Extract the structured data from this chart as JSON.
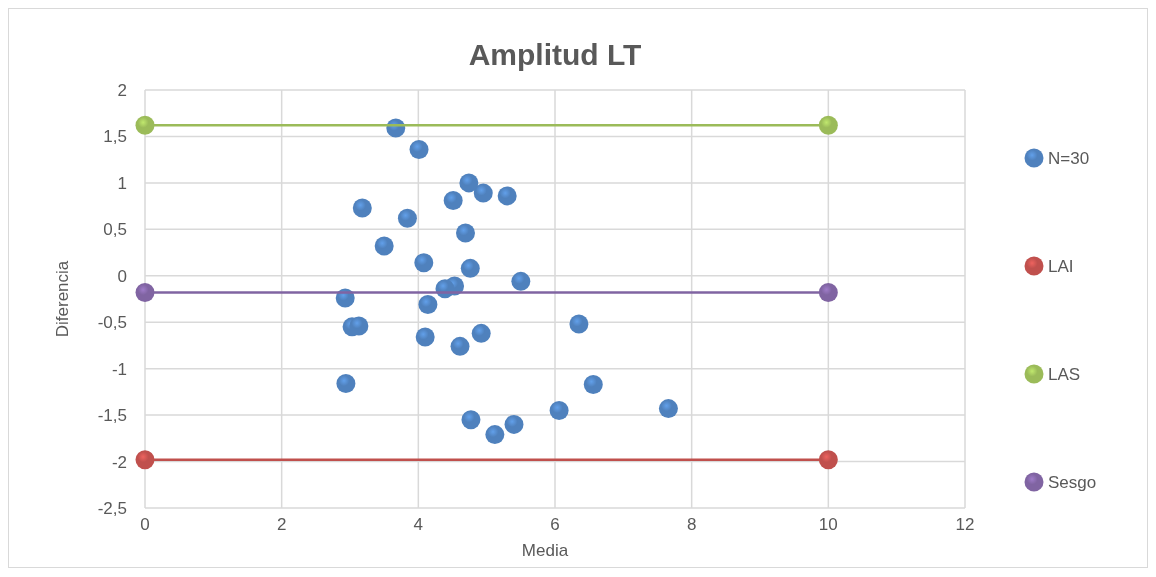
{
  "chart_data": {
    "type": "scatter",
    "title": "Amplitud LT",
    "xlabel": "Media",
    "ylabel": "Diferencia",
    "xlim": [
      0,
      12
    ],
    "xticks": [
      0,
      2,
      4,
      6,
      8,
      10,
      12
    ],
    "ylim": [
      -2.5,
      2
    ],
    "yticks": [
      {
        "value": -2.5,
        "label": "-2,5"
      },
      -2,
      {
        "value": -1.5,
        "label": "-1,5"
      },
      -1,
      {
        "value": -0.5,
        "label": "-0,5"
      },
      0,
      {
        "value": 0.5,
        "label": "0,5"
      },
      1,
      {
        "value": 1.5,
        "label": "1,5"
      },
      2
    ],
    "grid": true,
    "legend": "right",
    "marker": "circle",
    "series": [
      {
        "name": "N=30",
        "type": "scatter",
        "color": "#4f81bd",
        "x": [
          3.67,
          4.01,
          4.74,
          4.95,
          4.51,
          5.3,
          3.18,
          3.84,
          4.69,
          3.5,
          4.08,
          4.76,
          5.5,
          4.53,
          4.39,
          2.93,
          4.14,
          3.03,
          3.13,
          6.35,
          4.1,
          4.92,
          4.61,
          2.94,
          6.56,
          6.06,
          7.66,
          4.77,
          5.4,
          5.12
        ],
        "values": [
          1.59,
          1.36,
          1.0,
          0.89,
          0.81,
          0.86,
          0.73,
          0.62,
          0.46,
          0.32,
          0.14,
          0.08,
          -0.06,
          -0.11,
          -0.14,
          -0.24,
          -0.31,
          -0.55,
          -0.54,
          -0.52,
          -0.66,
          -0.62,
          -0.76,
          -1.16,
          -1.17,
          -1.45,
          -1.43,
          -1.55,
          -1.6,
          -1.71
        ]
      },
      {
        "name": "LAI",
        "type": "line",
        "color": "#c0504d",
        "x": [
          0,
          10
        ],
        "values": [
          -1.98,
          -1.98
        ]
      },
      {
        "name": "LAS",
        "type": "line",
        "color": "#9bbb59",
        "x": [
          0,
          10
        ],
        "values": [
          1.62,
          1.62
        ]
      },
      {
        "name": "Sesgo",
        "type": "line",
        "color": "#8064a2",
        "x": [
          0,
          10
        ],
        "values": [
          -0.18,
          -0.18
        ]
      }
    ]
  }
}
